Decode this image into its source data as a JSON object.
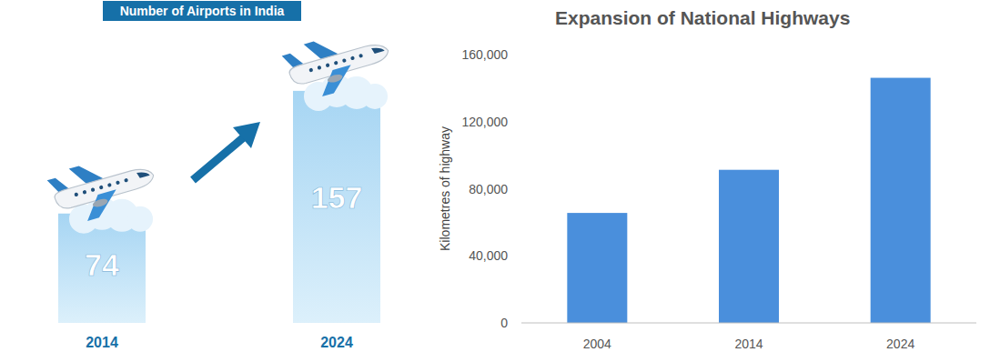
{
  "chart_data": [
    {
      "type": "bar",
      "title": "Number of Airports in India",
      "categories": [
        "2014",
        "2024"
      ],
      "values": [
        74,
        157
      ],
      "color": "#a6d5f3",
      "ylim": [
        0,
        160
      ],
      "data_labels": true,
      "tick_labels": "x"
    },
    {
      "type": "bar",
      "title": "Expansion of National Highways",
      "y_label": "Kilometres of highway",
      "categories": [
        "2004",
        "2014",
        "2024"
      ],
      "values": [
        65569,
        91287,
        146145
      ],
      "color": "#4a8fdc",
      "ylim": [
        0,
        160000
      ],
      "yticks": [
        0,
        {
          "value": 40000,
          "label": "40,000"
        },
        {
          "value": 80000,
          "label": "80,000"
        },
        {
          "value": 120000,
          "label": "120,000"
        },
        {
          "value": 160000,
          "label": "160,000"
        }
      ],
      "grid": false
    }
  ]
}
